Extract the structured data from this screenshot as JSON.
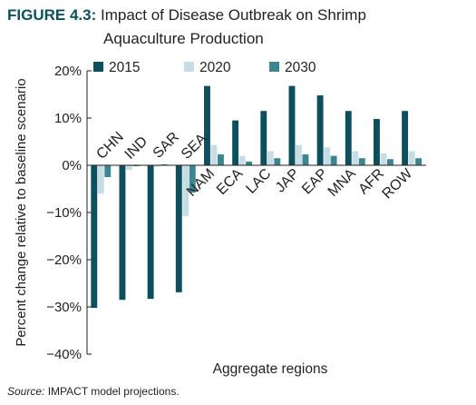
{
  "figure": {
    "label": "FIGURE 4.3:",
    "title_line1": "Impact of Disease Outbreak on Shrimp",
    "title_line2": "Aquaculture Production",
    "source_label": "Source:",
    "source_text": "IMPACT model projections."
  },
  "chart_data": {
    "type": "bar",
    "title": "Impact of Disease Outbreak on Shrimp Aquaculture Production",
    "xlabel": "Aggregate regions",
    "ylabel": "Percent change relative to baseline scenario",
    "ylim": [
      -40,
      20
    ],
    "yticks": [
      20,
      10,
      0,
      -10,
      -20,
      -30,
      -40
    ],
    "ytick_labels": [
      "20%",
      "10%",
      "0%",
      "−10%",
      "−20%",
      "−30%",
      "−40%"
    ],
    "categories": [
      "CHN",
      "IND",
      "SAR",
      "SEA",
      "NAM",
      "ECA",
      "LAC",
      "JAP",
      "EAP",
      "MNA",
      "AFR",
      "ROW"
    ],
    "series": [
      {
        "name": "2015",
        "color": "#0d4f5c",
        "values": [
          -30.2,
          -28.5,
          -28.3,
          -26.9,
          16.8,
          9.5,
          11.5,
          16.8,
          14.8,
          11.5,
          9.8,
          11.5
        ]
      },
      {
        "name": "2020",
        "color": "#c6dde3",
        "values": [
          -6.0,
          -1.0,
          -0.3,
          -10.8,
          4.3,
          2.0,
          3.0,
          4.3,
          3.8,
          3.0,
          2.5,
          3.0
        ]
      },
      {
        "name": "2030",
        "color": "#3d8591",
        "values": [
          -2.5,
          -0.2,
          0.2,
          -5.8,
          2.3,
          0.8,
          1.5,
          2.3,
          2.0,
          1.5,
          1.3,
          1.5
        ]
      }
    ],
    "legend_position": "top",
    "grid": false
  }
}
